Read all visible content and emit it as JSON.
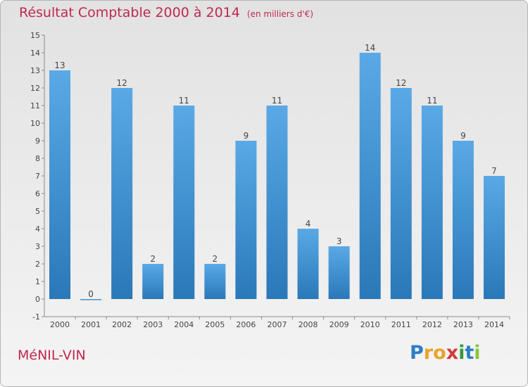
{
  "header": {
    "title": "Résultat Comptable 2000 à 2014",
    "unit": "(en milliers d'€)"
  },
  "footer": {
    "commune": "MéNIL-VIN",
    "logo_letters": [
      "P",
      "r",
      "o",
      "x",
      "i",
      "t",
      "i"
    ]
  },
  "colors": {
    "title": "#c0284e",
    "bar_light": "#5aa9e6",
    "bar_dark": "#2a78b8",
    "logo": [
      "#2c7fc4",
      "#e8a32a",
      "#e8a32a",
      "#d23c3c",
      "#3a9a3a",
      "#2c7fc4",
      "#8bc53f"
    ]
  },
  "chart_data": {
    "type": "bar",
    "categories": [
      "2000",
      "2001",
      "2002",
      "2003",
      "2004",
      "2005",
      "2006",
      "2007",
      "2008",
      "2009",
      "2010",
      "2011",
      "2012",
      "2013",
      "2014"
    ],
    "values": [
      13,
      0,
      12,
      2,
      11,
      2,
      9,
      11,
      4,
      3,
      14,
      12,
      11,
      9,
      7
    ],
    "ylim": [
      -1,
      15
    ],
    "yticks": [
      -1,
      0,
      1,
      2,
      3,
      4,
      5,
      6,
      7,
      8,
      9,
      10,
      11,
      12,
      13,
      14,
      15
    ],
    "grid": false,
    "title": "Résultat Comptable 2000 à 2014",
    "xlabel": "",
    "ylabel": ""
  }
}
